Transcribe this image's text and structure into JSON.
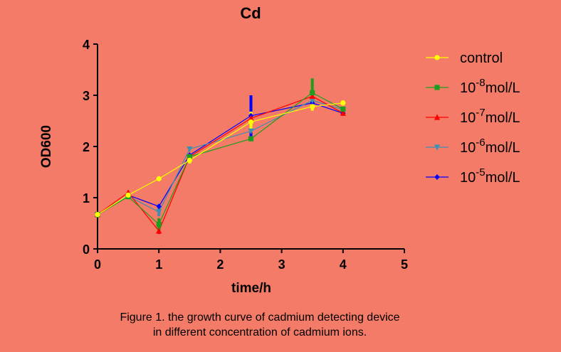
{
  "chart_data": {
    "type": "line",
    "title": "Cd",
    "xlabel": "time/h",
    "ylabel": "OD600",
    "xlim": [
      0,
      5
    ],
    "ylim": [
      0,
      4
    ],
    "xticks": [
      0,
      1,
      2,
      3,
      4,
      5
    ],
    "yticks": [
      0,
      1,
      2,
      3,
      4
    ],
    "grid": false,
    "legend_position": "right",
    "series": [
      {
        "name": "control",
        "label_base": "control",
        "label_exp": "",
        "label_unit": "",
        "color": "#FFFF00",
        "marker": "circle",
        "x": [
          0,
          0.5,
          1,
          1.5,
          2.5,
          3.5,
          4
        ],
        "y": [
          0.67,
          1.05,
          1.37,
          1.73,
          2.48,
          2.78,
          2.85
        ],
        "err": [
          0,
          0,
          0,
          0.06,
          0.2,
          0.08,
          0.05
        ]
      },
      {
        "name": "10-8mol/L",
        "label_base": "10",
        "label_exp": "-8",
        "label_unit": "mol/L",
        "color": "#1E9E1E",
        "marker": "square",
        "x": [
          0,
          0.5,
          1,
          1.5,
          2.5,
          3.5,
          4
        ],
        "y": [
          0.67,
          1.02,
          0.48,
          1.8,
          2.15,
          3.05,
          2.73
        ],
        "err": [
          0,
          0,
          0.12,
          0,
          0,
          0.28,
          0
        ]
      },
      {
        "name": "10-7mol/L",
        "label_base": "10",
        "label_exp": "-7",
        "label_unit": "mol/L",
        "color": "#FF0000",
        "marker": "triangle-up",
        "x": [
          0,
          0.5,
          1,
          1.5,
          2.5,
          3.5,
          4
        ],
        "y": [
          0.67,
          1.1,
          0.35,
          1.8,
          2.55,
          2.98,
          2.65
        ],
        "err": [
          0,
          0,
          0.06,
          0,
          0,
          0,
          0
        ]
      },
      {
        "name": "10-6mol/L",
        "label_base": "10",
        "label_exp": "-6",
        "label_unit": "mol/L",
        "color": "#3F8FB2",
        "marker": "triangle-down",
        "x": [
          0,
          0.5,
          1,
          1.5,
          2.5,
          3.5,
          4
        ],
        "y": [
          0.67,
          1.03,
          0.72,
          1.95,
          2.3,
          2.9,
          2.72
        ],
        "err": [
          0,
          0,
          0.08,
          0,
          0,
          0,
          0
        ]
      },
      {
        "name": "10-5mol/L",
        "label_base": "10",
        "label_exp": "-5",
        "label_unit": "mol/L",
        "color": "#0000FF",
        "marker": "diamond",
        "x": [
          0,
          0.5,
          1,
          1.5,
          2.5,
          3.5,
          4
        ],
        "y": [
          0.67,
          1.05,
          0.83,
          1.83,
          2.6,
          2.85,
          2.65
        ],
        "err": [
          0,
          0,
          0,
          0,
          0.4,
          0,
          0
        ]
      }
    ]
  },
  "caption": {
    "line1": "Figure 1. the growth curve of cadmium detecting device",
    "line2": "in different concentration of cadmium ions."
  }
}
